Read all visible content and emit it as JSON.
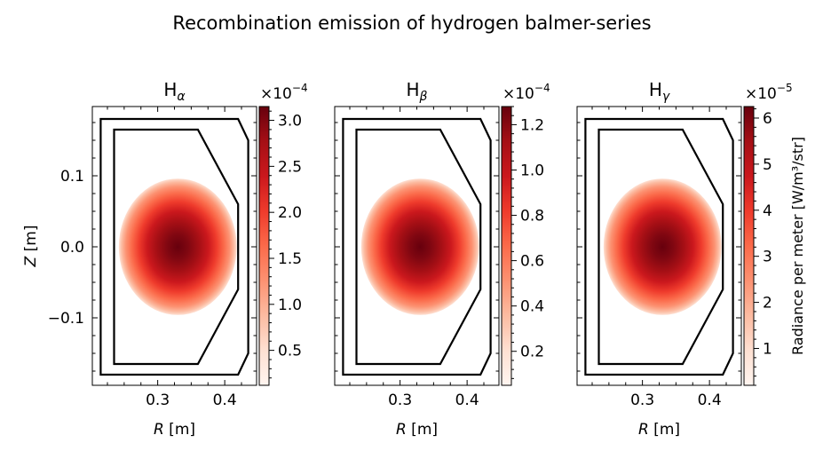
{
  "figure": {
    "suptitle": "Recombination emission of hydrogen balmer-series"
  },
  "chart_data": [
    {
      "type": "heatmap",
      "title_base": "H",
      "title_sub": "α",
      "xlabel_var": "R",
      "xlabel_unit": " [m]",
      "ylabel_var": "Z",
      "ylabel_unit": " [m]",
      "xlim": [
        0.2025,
        0.4475
      ],
      "ylim": [
        -0.195,
        0.1975
      ],
      "xticks": [
        0.3,
        0.4
      ],
      "xtick_labels": [
        "0.3",
        "0.4"
      ],
      "yticks": [
        -0.1,
        0.0,
        0.1
      ],
      "ytick_labels": [
        "−0.1",
        "0.0",
        "0.1"
      ],
      "emission": {
        "center_r": 0.33,
        "center_z": 0.0,
        "radius_r": 0.088,
        "radius_z": 0.096
      },
      "colorbar": {
        "cmap": "Reds",
        "range": [
          0.12,
          3.15
        ],
        "ticks": [
          0.5,
          1.0,
          1.5,
          2.0,
          2.5,
          3.0
        ],
        "tick_labels": [
          "0.5",
          "1.0",
          "1.5",
          "2.0",
          "2.5",
          "3.0"
        ],
        "minor_step": 0.1,
        "multiplier_base": "×10",
        "multiplier_exp": "−4",
        "label": ""
      }
    },
    {
      "type": "heatmap",
      "title_base": "H",
      "title_sub": "β",
      "xlabel_var": "R",
      "xlabel_unit": " [m]",
      "ylabel_var": "",
      "ylabel_unit": "",
      "xlim": [
        0.2025,
        0.4475
      ],
      "ylim": [
        -0.195,
        0.1975
      ],
      "xticks": [
        0.3,
        0.4
      ],
      "xtick_labels": [
        "0.3",
        "0.4"
      ],
      "yticks": [
        -0.1,
        0.0,
        0.1
      ],
      "ytick_labels": [],
      "emission": {
        "center_r": 0.33,
        "center_z": 0.0,
        "radius_r": 0.088,
        "radius_z": 0.096
      },
      "colorbar": {
        "cmap": "Reds",
        "range": [
          0.05,
          1.28
        ],
        "ticks": [
          0.2,
          0.4,
          0.6,
          0.8,
          1.0,
          1.2
        ],
        "tick_labels": [
          "0.2",
          "0.4",
          "0.6",
          "0.8",
          "1.0",
          "1.2"
        ],
        "minor_step": 0.04,
        "multiplier_base": "×10",
        "multiplier_exp": "−4",
        "label": ""
      }
    },
    {
      "type": "heatmap",
      "title_base": "H",
      "title_sub": "γ",
      "xlabel_var": "R",
      "xlabel_unit": " [m]",
      "ylabel_var": "",
      "ylabel_unit": "",
      "xlim": [
        0.2025,
        0.4475
      ],
      "ylim": [
        -0.195,
        0.1975
      ],
      "xticks": [
        0.3,
        0.4
      ],
      "xtick_labels": [
        "0.3",
        "0.4"
      ],
      "yticks": [
        -0.1,
        0.0,
        0.1
      ],
      "ytick_labels": [],
      "emission": {
        "center_r": 0.33,
        "center_z": 0.0,
        "radius_r": 0.088,
        "radius_z": 0.096
      },
      "colorbar": {
        "cmap": "Reds",
        "range": [
          0.2,
          6.25
        ],
        "ticks": [
          1,
          2,
          3,
          4,
          5,
          6
        ],
        "tick_labels": [
          "1",
          "2",
          "3",
          "4",
          "5",
          "6"
        ],
        "minor_step": 0.2,
        "multiplier_base": "×10",
        "multiplier_exp": "−5",
        "label": "Radiance per meter [W/m³/str]"
      }
    }
  ],
  "vessel": {
    "outer": [
      [
        0.215,
        0.18
      ],
      [
        0.42,
        0.18
      ],
      [
        0.435,
        0.15
      ],
      [
        0.435,
        -0.15
      ],
      [
        0.42,
        -0.18
      ],
      [
        0.215,
        -0.18
      ]
    ],
    "inner": [
      [
        0.235,
        0.165
      ],
      [
        0.36,
        0.165
      ],
      [
        0.42,
        0.06
      ],
      [
        0.42,
        -0.06
      ],
      [
        0.36,
        -0.165
      ],
      [
        0.235,
        -0.165
      ]
    ]
  }
}
